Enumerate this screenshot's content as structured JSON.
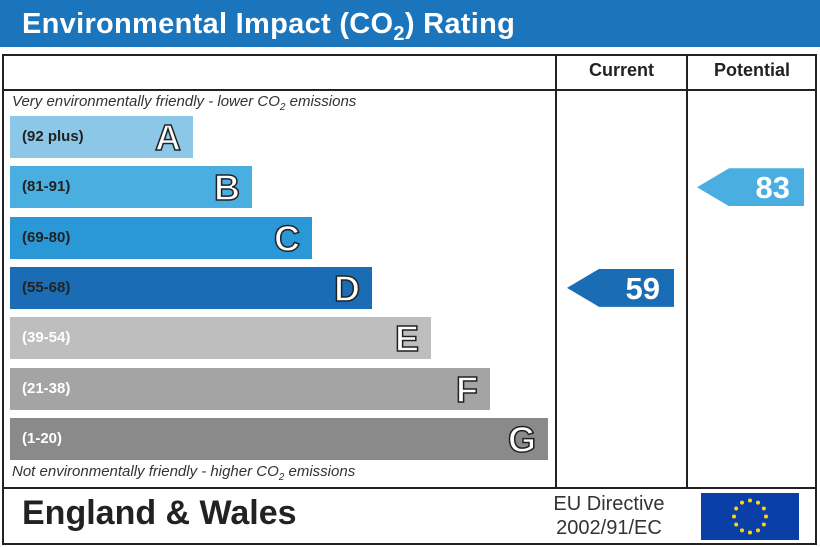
{
  "header": {
    "title_pre": "Environmental Impact (CO",
    "title_sub": "2",
    "title_post": ") Rating"
  },
  "columns": {
    "current": "Current",
    "potential": "Potential"
  },
  "top_note": {
    "pre": "Very environmentally friendly - lower CO",
    "sub": "2",
    "post": " emissions"
  },
  "bottom_note": {
    "pre": "Not environmentally friendly - higher CO",
    "sub": "2",
    "post": " emissions"
  },
  "chart_data": {
    "type": "bar",
    "bands": [
      {
        "letter": "A",
        "range": "(92 plus)",
        "color": "#8cc7e8"
      },
      {
        "letter": "B",
        "range": "(81-91)",
        "color": "#4aaee0"
      },
      {
        "letter": "C",
        "range": "(69-80)",
        "color": "#2a97d6"
      },
      {
        "letter": "D",
        "range": "(55-68)",
        "color": "#1a6db5"
      },
      {
        "letter": "E",
        "range": "(39-54)",
        "color": "#bebebe"
      },
      {
        "letter": "F",
        "range": "(21-38)",
        "color": "#a4a4a4"
      },
      {
        "letter": "G",
        "range": "(1-20)",
        "color": "#8a8a8a"
      }
    ],
    "current": {
      "value": "59",
      "band": "D",
      "color": "#1a6db5"
    },
    "potential": {
      "value": "83",
      "band": "B",
      "color": "#4aaee0"
    }
  },
  "footer": {
    "region": "England & Wales",
    "directive_line1": "EU Directive",
    "directive_line2": "2002/91/EC"
  }
}
